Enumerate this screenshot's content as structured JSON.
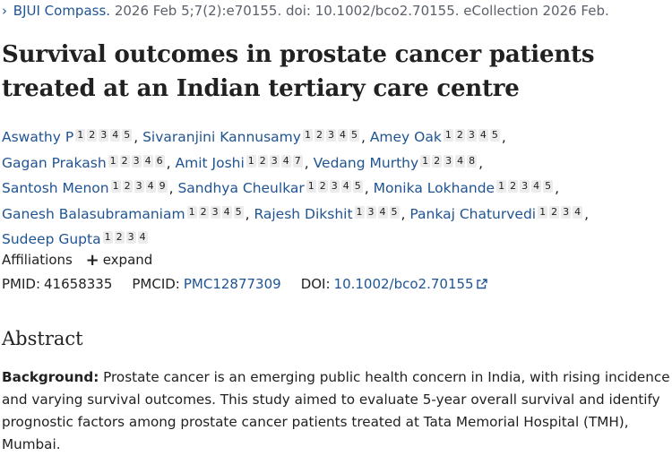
{
  "citation": {
    "journal": "BJUI Compass.",
    "rest": " 2026 Feb 5;7(2):e70155. doi: 10.1002/bco2.70155. eCollection 2026 Feb."
  },
  "title": "Survival outcomes in prostate cancer patients treated at an Indian tertiary care centre",
  "authors": [
    {
      "name": "Aswathy P",
      "affils": [
        "1",
        "2",
        "3",
        "4",
        "5"
      ]
    },
    {
      "name": "Sivaranjini Kannusamy",
      "affils": [
        "1",
        "2",
        "3",
        "4",
        "5"
      ]
    },
    {
      "name": "Amey Oak",
      "affils": [
        "1",
        "2",
        "3",
        "4",
        "5"
      ]
    },
    {
      "name": "Gagan Prakash",
      "affils": [
        "1",
        "2",
        "3",
        "4",
        "6"
      ]
    },
    {
      "name": "Amit Joshi",
      "affils": [
        "1",
        "2",
        "3",
        "4",
        "7"
      ]
    },
    {
      "name": "Vedang Murthy",
      "affils": [
        "1",
        "2",
        "3",
        "4",
        "8"
      ]
    },
    {
      "name": "Santosh Menon",
      "affils": [
        "1",
        "2",
        "3",
        "4",
        "9"
      ]
    },
    {
      "name": "Sandhya Cheulkar",
      "affils": [
        "1",
        "2",
        "3",
        "4",
        "5"
      ]
    },
    {
      "name": "Monika Lokhande",
      "affils": [
        "1",
        "2",
        "3",
        "4",
        "5"
      ]
    },
    {
      "name": "Ganesh Balasubramaniam",
      "affils": [
        "1",
        "2",
        "3",
        "4",
        "5"
      ]
    },
    {
      "name": "Rajesh Dikshit",
      "affils": [
        "1",
        "3",
        "4",
        "5"
      ]
    },
    {
      "name": "Pankaj Chaturvedi",
      "affils": [
        "1",
        "2",
        "3",
        "4"
      ]
    },
    {
      "name": "Sudeep Gupta",
      "affils": [
        "1",
        "2",
        "3",
        "4"
      ]
    }
  ],
  "author_lines": [
    [
      0,
      1,
      2
    ],
    [
      3,
      4,
      5
    ],
    [
      6,
      7,
      8
    ],
    [
      9,
      10,
      11
    ],
    [
      12
    ]
  ],
  "affiliations": {
    "label": "Affiliations",
    "expand": "expand"
  },
  "ids": {
    "pmid_label": "PMID:",
    "pmid": "41658335",
    "pmcid_label": "PMCID:",
    "pmcid": "PMC12877309",
    "doi_label": "DOI:",
    "doi": "10.1002/bco2.70155"
  },
  "abstract": {
    "heading": "Abstract",
    "background_label": "Background:",
    "background_text": " Prostate cancer is an emerging public health concern in India, with rising incidence and varying survival outcomes. This study aimed to evaluate 5-year overall survival and identify prognostic factors among prostate cancer patients treated at Tata Memorial Hospital (TMH), Mumbai."
  },
  "colors": {
    "link": "#205493",
    "text": "#212121",
    "muted": "#5b616b",
    "badge_bg": "#ececec"
  },
  "icons": {
    "chevron": "chevron-right-icon",
    "plus": "plus-icon",
    "external": "external-link-icon"
  }
}
